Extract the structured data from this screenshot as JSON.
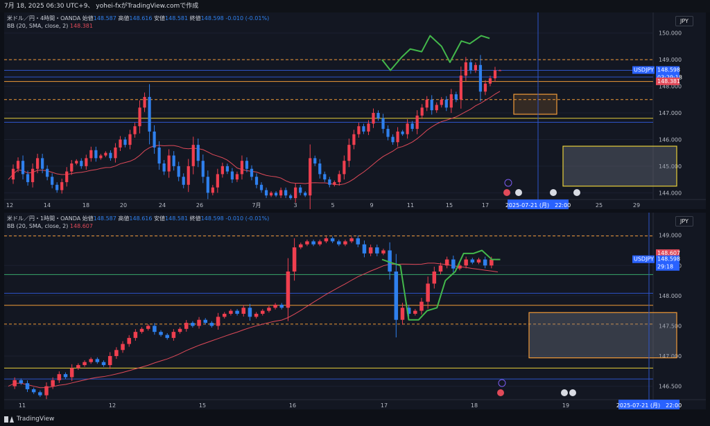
{
  "header": {
    "text": "7月 18, 2025 06:30 UTC+9、 yohei-fxがTradingView.comで作成"
  },
  "footer": {
    "brand": "TradingView"
  },
  "colors": {
    "bg": "#131722",
    "up": "#ef3f4f",
    "down": "#2f80ed",
    "bb": "#e04a59",
    "forecast": "#43b84b",
    "orange": "#f29b38",
    "yellow": "#e8cf3a",
    "navy": "#2e54c9",
    "green_line": "#3aa86b",
    "grid": "#1c2130",
    "axis_text": "#b8bcc6"
  },
  "icons": [
    "lightning-icon",
    "event-flag-icon",
    "us-flag-icon",
    "tradingview-logo-icon"
  ],
  "chart_data": [
    {
      "type": "candlestick",
      "legend_line1": {
        "symbol": "米ドル／円・4時間・OANDA",
        "open_label": "始値",
        "open": "148.587",
        "high_label": "高値",
        "high": "148.616",
        "low_label": "安値",
        "low": "148.581",
        "close_label": "終値",
        "close": "148.598",
        "change": "-0.010 (-0.01%)"
      },
      "legend_line2": {
        "indicator": "BB (20, SMA, close, 2)",
        "value": "148.381"
      },
      "currency": "JPY",
      "y_ticks": [
        "150.000",
        "149.000",
        "148.000",
        "147.000",
        "146.000",
        "145.000",
        "144.000"
      ],
      "ylim": [
        143.8,
        150.2
      ],
      "x_ticks": [
        "12",
        "14",
        "18",
        "20",
        "24",
        "26",
        "7月",
        "3",
        "5",
        "9",
        "11",
        "15",
        "17",
        "21",
        "25",
        "29"
      ],
      "price_labels": [
        {
          "label": "USDJPY",
          "value": "148.598",
          "sub": "03:29:18"
        },
        {
          "value": "148.381"
        }
      ],
      "date_label": "2025-07-21 (月)　22:00",
      "horizontal_lines": [
        {
          "price": 149.0,
          "color": "orange",
          "dashed": true
        },
        {
          "price": 148.6,
          "color": "navy",
          "dashed": false
        },
        {
          "price": 148.35,
          "color": "navy",
          "dashed": false
        },
        {
          "price": 148.18,
          "color": "orange",
          "dashed": false
        },
        {
          "price": 147.5,
          "color": "orange",
          "dashed": true
        },
        {
          "price": 146.8,
          "color": "yellow",
          "dashed": false
        },
        {
          "price": 146.65,
          "color": "navy",
          "dashed": false
        }
      ],
      "boxes": [
        {
          "p_top": 147.7,
          "p_bot": 146.95,
          "color": "orange"
        },
        {
          "p_top": 145.75,
          "p_bot": 144.25,
          "color": "yellow"
        }
      ],
      "price_path": [
        144.5,
        144.9,
        145.2,
        144.7,
        144.4,
        144.9,
        145.3,
        144.9,
        144.6,
        144.3,
        144.1,
        144.4,
        144.8,
        145.1,
        145.2,
        145.0,
        145.3,
        145.6,
        145.3,
        145.4,
        145.5,
        145.3,
        145.7,
        146.0,
        145.8,
        146.2,
        146.5,
        147.2,
        147.6,
        146.3,
        145.7,
        145.1,
        144.8,
        145.4,
        145.0,
        144.6,
        144.3,
        145.0,
        145.8,
        145.2,
        144.6,
        144.0,
        144.2,
        144.7,
        145.0,
        144.8,
        144.5,
        144.7,
        145.2,
        144.9,
        144.6,
        144.3,
        144.1,
        143.9,
        144.0,
        143.9,
        144.1,
        143.9,
        143.8,
        144.2,
        144.0,
        143.9,
        145.3,
        145.1,
        144.7,
        144.5,
        144.3,
        144.4,
        144.7,
        145.2,
        145.8,
        146.2,
        146.5,
        146.3,
        146.6,
        147.0,
        146.8,
        146.4,
        146.1,
        145.9,
        146.3,
        146.2,
        146.6,
        146.4,
        146.9,
        147.2,
        147.5,
        147.1,
        147.3,
        147.5,
        147.2,
        147.7,
        147.5,
        148.4,
        148.9,
        148.6,
        148.8,
        147.8,
        148.1,
        148.3,
        148.6,
        148.6
      ],
      "forecast_path": [
        [
          149.0,
          148.6
        ],
        [
          149.1,
          149.4
        ],
        [
          149.3,
          149.9
        ],
        [
          149.5,
          148.9
        ],
        [
          149.7,
          149.6
        ],
        [
          149.9,
          149.8
        ]
      ]
    },
    {
      "type": "candlestick",
      "legend_line1": {
        "symbol": "米ドル／円・1時間・OANDA",
        "open_label": "始値",
        "open": "148.587",
        "high_label": "高値",
        "high": "148.616",
        "low_label": "安値",
        "low": "148.581",
        "close_label": "終値",
        "close": "148.598",
        "change": "-0.010 (-0.01%)"
      },
      "legend_line2": {
        "indicator": "BB (20, SMA, close, 2)",
        "value": "148.607"
      },
      "currency": "JPY",
      "y_ticks": [
        "149.000",
        "148.500",
        "148.000",
        "147.500",
        "147.000",
        "146.500"
      ],
      "ylim": [
        146.3,
        149.1
      ],
      "x_ticks": [
        "11",
        "12",
        "15",
        "16",
        "17",
        "18",
        "19"
      ],
      "price_labels": [
        {
          "value": "148.607"
        },
        {
          "label": "USDJPY",
          "value": "148.598",
          "sub": "29:18"
        }
      ],
      "date_label": "2025-07-21 (月)　22:00",
      "horizontal_lines": [
        {
          "price": 148.99,
          "color": "orange",
          "dashed": true
        },
        {
          "price": 148.35,
          "color": "green_line",
          "dashed": false
        },
        {
          "price": 148.04,
          "color": "navy",
          "dashed": false
        },
        {
          "price": 147.84,
          "color": "orange",
          "dashed": false
        },
        {
          "price": 147.53,
          "color": "orange",
          "dashed": true
        },
        {
          "price": 146.8,
          "color": "yellow",
          "dashed": false
        },
        {
          "price": 146.62,
          "color": "navy",
          "dashed": false
        }
      ],
      "boxes": [
        {
          "p_top": 147.72,
          "p_bot": 146.97,
          "color": "orange"
        }
      ],
      "price_path": [
        146.5,
        146.6,
        146.55,
        146.45,
        146.4,
        146.35,
        146.5,
        146.6,
        146.7,
        146.65,
        146.8,
        146.85,
        146.9,
        146.95,
        146.9,
        146.85,
        147.0,
        147.1,
        147.2,
        147.3,
        147.4,
        147.45,
        147.5,
        147.4,
        147.35,
        147.3,
        147.4,
        147.45,
        147.55,
        147.5,
        147.6,
        147.55,
        147.5,
        147.65,
        147.7,
        147.75,
        147.7,
        147.8,
        147.65,
        147.7,
        147.75,
        147.8,
        147.85,
        147.8,
        148.4,
        148.8,
        148.85,
        148.9,
        148.85,
        148.9,
        148.95,
        148.9,
        148.85,
        148.9,
        148.95,
        148.85,
        148.7,
        148.8,
        148.7,
        148.75,
        148.4,
        147.6,
        147.8,
        147.7,
        147.75,
        147.9,
        148.2,
        148.4,
        148.5,
        148.6,
        148.45,
        148.5,
        148.6,
        148.55,
        148.6,
        148.5,
        148.6,
        148.6
      ],
      "forecast_path": [
        [
          148.6,
          148.55
        ],
        [
          148.5,
          147.6
        ],
        [
          147.6,
          147.75
        ],
        [
          147.8,
          148.25
        ],
        [
          148.4,
          148.7
        ],
        [
          148.7,
          148.75
        ],
        [
          148.6,
          148.6
        ]
      ]
    }
  ]
}
